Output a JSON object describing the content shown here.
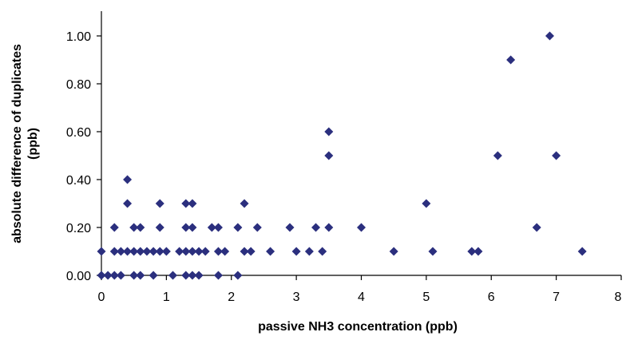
{
  "chart_data": {
    "type": "scatter",
    "title": "",
    "xlabel": "passive NH3 concentration (ppb)",
    "ylabel_lines": [
      "absolute difference of duplicates",
      "(ppb)"
    ],
    "xlim": [
      0,
      8
    ],
    "ylim": [
      0,
      1.1
    ],
    "x_ticks": [
      "0",
      "1",
      "2",
      "3",
      "4",
      "5",
      "6",
      "7",
      "8"
    ],
    "y_ticks": [
      "0.00",
      "0.20",
      "0.40",
      "0.60",
      "0.80",
      "1.00"
    ],
    "marker": "diamond",
    "grid": false,
    "legend": "none",
    "color": "#2b2f7e",
    "series": [
      {
        "points": [
          [
            0,
            0.1
          ],
          [
            0,
            0
          ],
          [
            0.1,
            0
          ],
          [
            0.2,
            0
          ],
          [
            0.3,
            0
          ],
          [
            0.5,
            0
          ],
          [
            0.6,
            0
          ],
          [
            0.8,
            0
          ],
          [
            1.1,
            0
          ],
          [
            1.3,
            0
          ],
          [
            1.4,
            0
          ],
          [
            1.5,
            0
          ],
          [
            1.8,
            0
          ],
          [
            2.1,
            0
          ],
          [
            0.2,
            0.1
          ],
          [
            0.3,
            0.1
          ],
          [
            0.4,
            0.1
          ],
          [
            0.5,
            0.1
          ],
          [
            0.6,
            0.1
          ],
          [
            0.7,
            0.1
          ],
          [
            0.8,
            0.1
          ],
          [
            0.9,
            0.1
          ],
          [
            1.0,
            0.1
          ],
          [
            1.2,
            0.1
          ],
          [
            1.3,
            0.1
          ],
          [
            1.4,
            0.1
          ],
          [
            1.5,
            0.1
          ],
          [
            1.6,
            0.1
          ],
          [
            1.8,
            0.1
          ],
          [
            1.9,
            0.1
          ],
          [
            2.2,
            0.1
          ],
          [
            2.3,
            0.1
          ],
          [
            2.6,
            0.1
          ],
          [
            3.0,
            0.1
          ],
          [
            3.2,
            0.1
          ],
          [
            3.4,
            0.1
          ],
          [
            4.5,
            0.1
          ],
          [
            5.1,
            0.1
          ],
          [
            5.7,
            0.1
          ],
          [
            5.8,
            0.1
          ],
          [
            7.4,
            0.1
          ],
          [
            0.2,
            0.2
          ],
          [
            0.5,
            0.2
          ],
          [
            0.6,
            0.2
          ],
          [
            0.9,
            0.2
          ],
          [
            1.3,
            0.2
          ],
          [
            1.4,
            0.2
          ],
          [
            1.7,
            0.2
          ],
          [
            1.8,
            0.2
          ],
          [
            2.1,
            0.2
          ],
          [
            2.4,
            0.2
          ],
          [
            2.9,
            0.2
          ],
          [
            3.3,
            0.2
          ],
          [
            3.5,
            0.2
          ],
          [
            4.0,
            0.2
          ],
          [
            6.7,
            0.2
          ],
          [
            0.4,
            0.3
          ],
          [
            0.9,
            0.3
          ],
          [
            1.3,
            0.3
          ],
          [
            1.4,
            0.3
          ],
          [
            2.2,
            0.3
          ],
          [
            5.0,
            0.3
          ],
          [
            0.4,
            0.4
          ],
          [
            3.5,
            0.5
          ],
          [
            6.1,
            0.5
          ],
          [
            7.0,
            0.5
          ],
          [
            3.5,
            0.6
          ],
          [
            6.3,
            0.9
          ],
          [
            6.9,
            1.0
          ]
        ]
      }
    ]
  }
}
